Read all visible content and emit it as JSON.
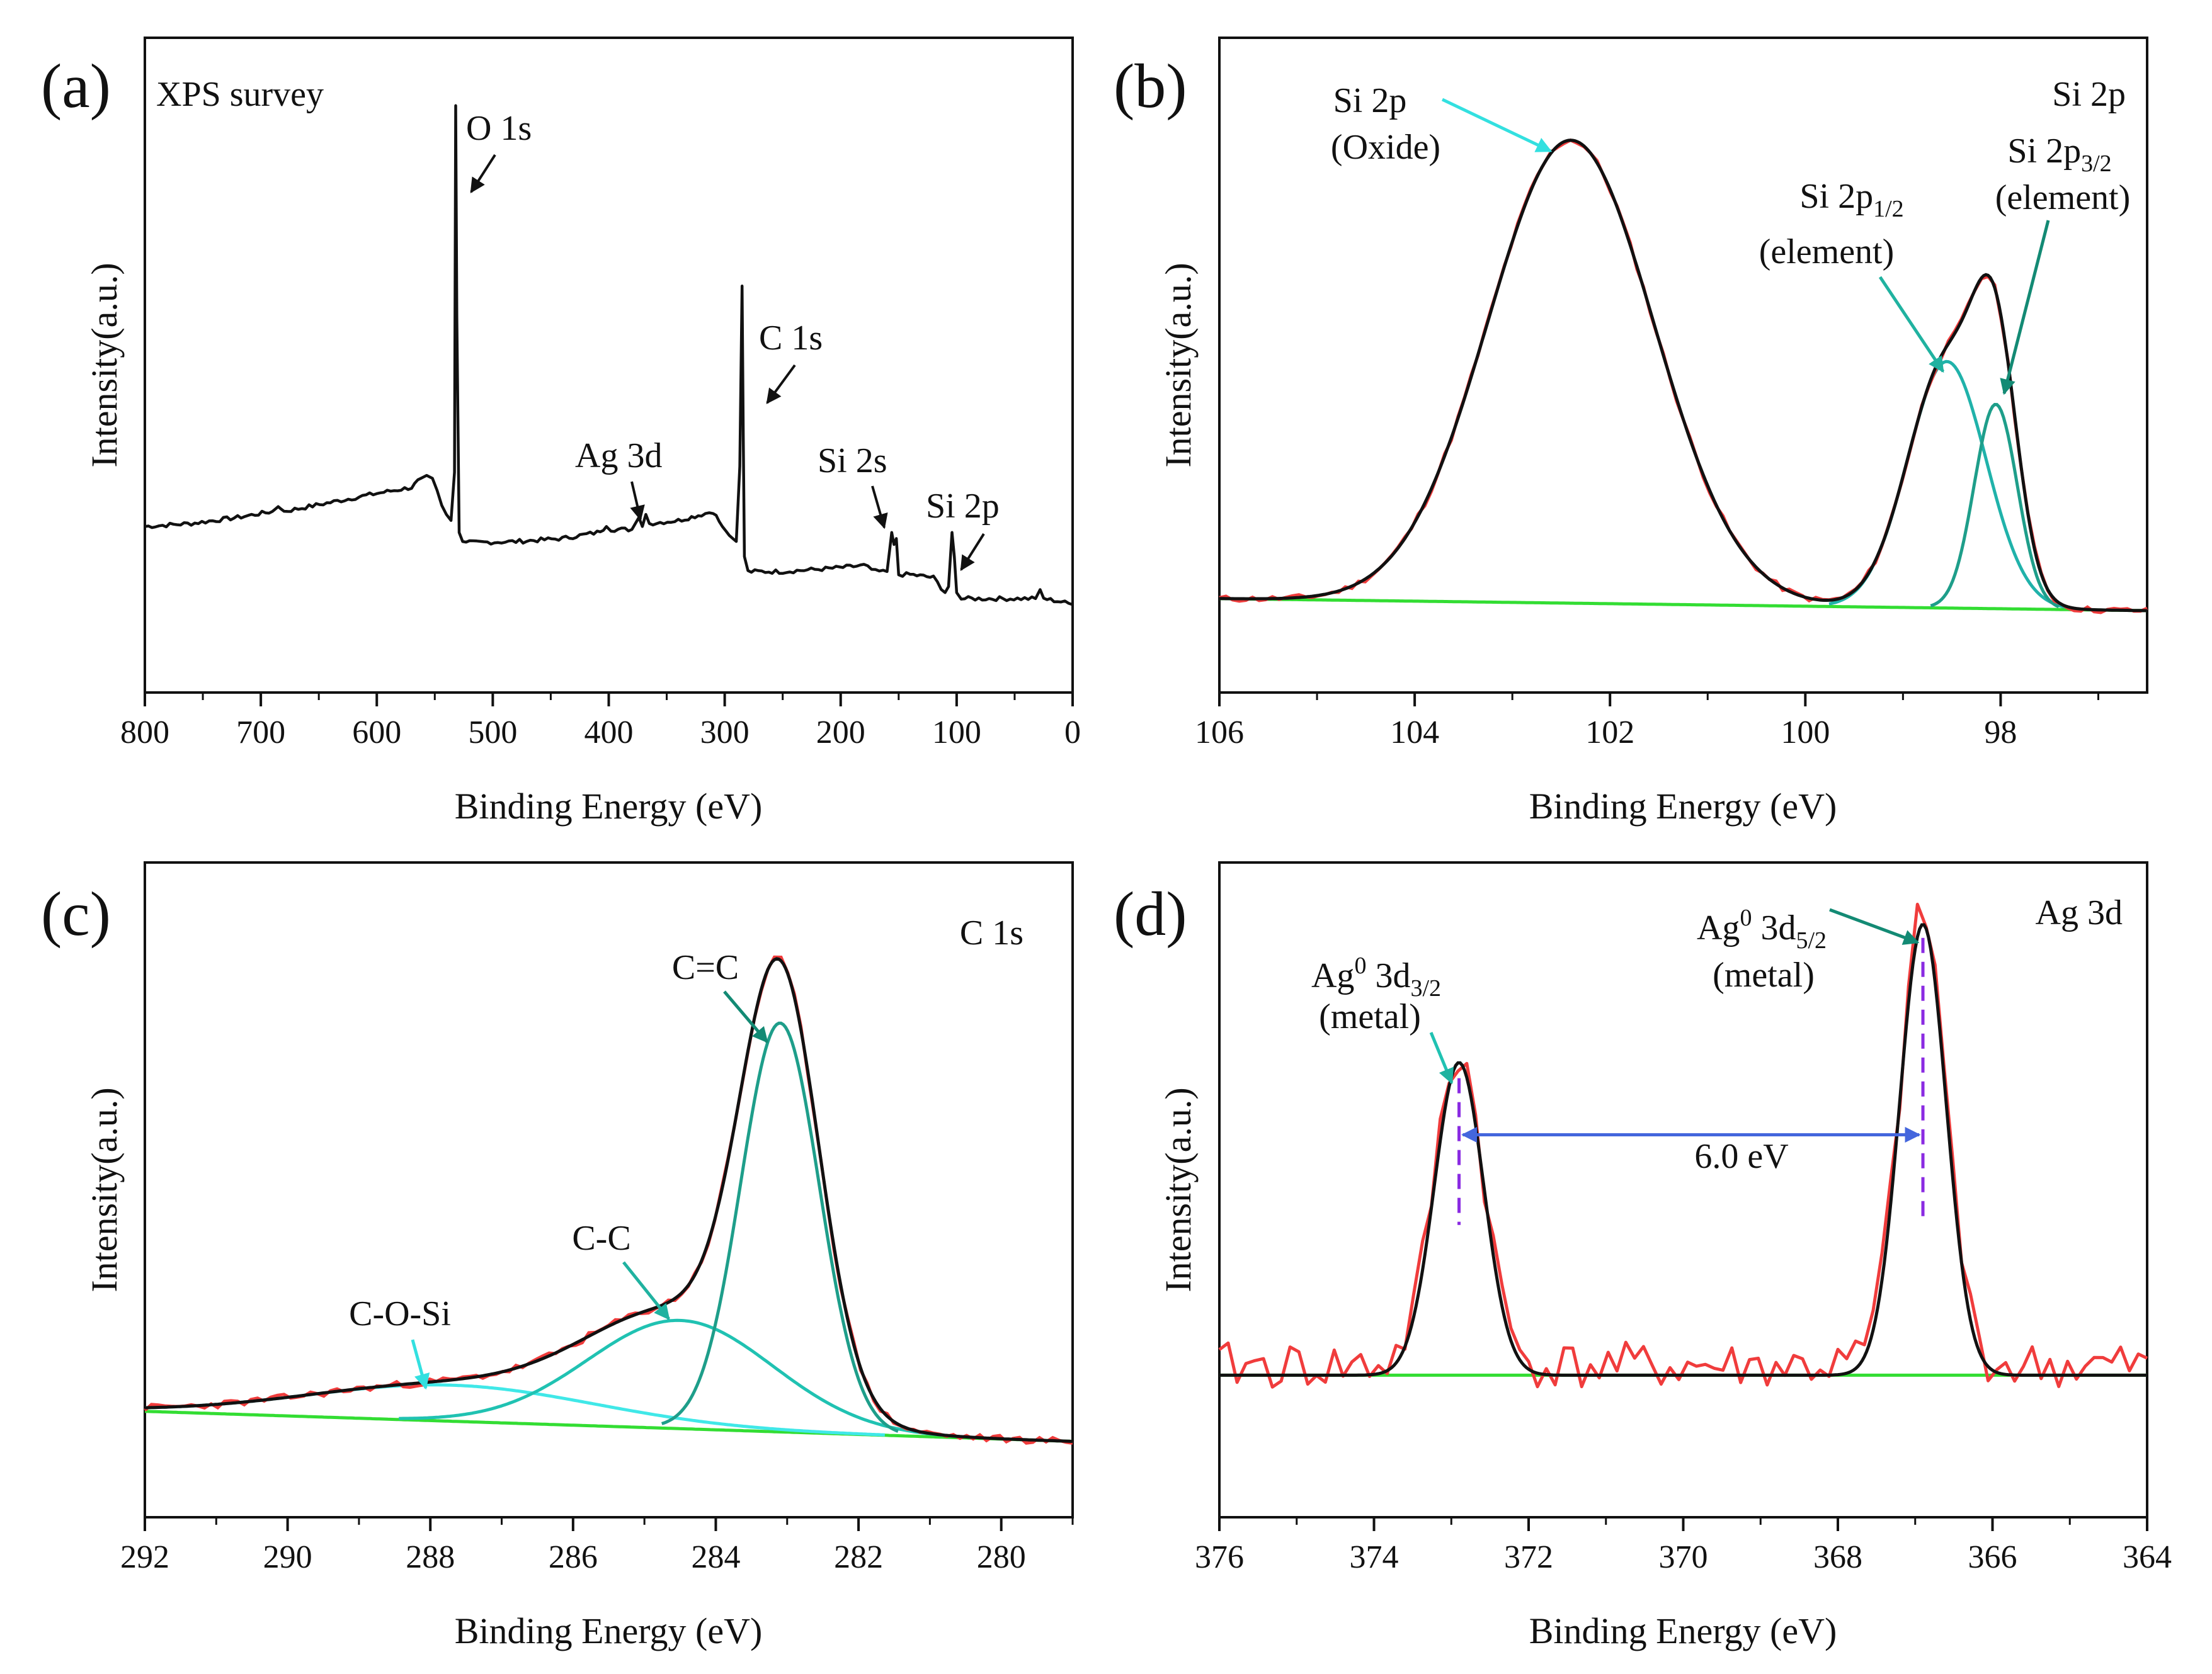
{
  "chart_data": [
    {
      "panel": "(a)",
      "type": "line",
      "title": "XPS survey",
      "xlabel": "Binding Energy (eV)",
      "ylabel": "Intensity(a.u.)",
      "xlim": [
        800,
        0
      ],
      "ylim": [
        0,
        100
      ],
      "xticks": [
        "800",
        "700",
        "600",
        "500",
        "400",
        "300",
        "200",
        "100",
        "0"
      ],
      "x_direction": "reversed",
      "series": [
        {
          "name": "survey",
          "color": "#111111",
          "points": [
            [
              800,
              25
            ],
            [
              760,
              25.5
            ],
            [
              720,
              26.5
            ],
            [
              690,
              27.5
            ],
            [
              685,
              28.3
            ],
            [
              680,
              27.5
            ],
            [
              640,
              29
            ],
            [
              600,
              30.5
            ],
            [
              570,
              31.5
            ],
            [
              562,
              33
            ],
            [
              557,
              33.5
            ],
            [
              552,
              33
            ],
            [
              548,
              31
            ],
            [
              544,
              28.5
            ],
            [
              540,
              27
            ],
            [
              536,
              26
            ],
            [
              533,
              34
            ],
            [
              532,
              95
            ],
            [
              531,
              60
            ],
            [
              529,
              24
            ],
            [
              526,
              22.5
            ],
            [
              520,
              22.3
            ],
            [
              480,
              22.5
            ],
            [
              440,
              23
            ],
            [
              410,
              24
            ],
            [
              402,
              25
            ],
            [
              398,
              24.5
            ],
            [
              380,
              24.5
            ],
            [
              374,
              26.5
            ],
            [
              371,
              25
            ],
            [
              368,
              27
            ],
            [
              365,
              25.5
            ],
            [
              340,
              26
            ],
            [
              320,
              27
            ],
            [
              310,
              27.5
            ],
            [
              302,
              25
            ],
            [
              296,
              23.5
            ],
            [
              290,
              22.5
            ],
            [
              287,
              35
            ],
            [
              285,
              65
            ],
            [
              284,
              40
            ],
            [
              283,
              20
            ],
            [
              280,
              17.5
            ],
            [
              250,
              17.5
            ],
            [
              210,
              18
            ],
            [
              180,
              18.5
            ],
            [
              170,
              17.5
            ],
            [
              160,
              17.5
            ],
            [
              156,
              24
            ],
            [
              154,
              22
            ],
            [
              152,
              23
            ],
            [
              150,
              17
            ],
            [
              140,
              17
            ],
            [
              120,
              16.5
            ],
            [
              110,
              14
            ],
            [
              107,
              15
            ],
            [
              104,
              24
            ],
            [
              102,
              20
            ],
            [
              100,
              14
            ],
            [
              96,
              13
            ],
            [
              60,
              13
            ],
            [
              32,
              13
            ],
            [
              28,
              14.5
            ],
            [
              25,
              13
            ],
            [
              10,
              12.5
            ],
            [
              0,
              12
            ]
          ]
        }
      ],
      "annotations": [
        {
          "text": "O 1s",
          "x": 532
        },
        {
          "text": "C 1s",
          "x": 285
        },
        {
          "text": "Ag 3d",
          "x": 368
        },
        {
          "text": "Si 2s",
          "x": 154
        },
        {
          "text": "Si 2p",
          "x": 102
        }
      ]
    },
    {
      "panel": "(b)",
      "type": "line",
      "title": "Si 2p",
      "xlabel": "Binding Energy (eV)",
      "ylabel": "Intensity(a.u.)",
      "xlim": [
        106,
        96.5
      ],
      "ylim": [
        0,
        100
      ],
      "xticks": [
        "106",
        "104",
        "102",
        "100",
        "98"
      ],
      "x_direction": "reversed",
      "background": {
        "from": 13,
        "to": 11
      },
      "components": [
        {
          "name": "Si 2p (Oxide)",
          "center": 102.4,
          "height": 77,
          "sigma": 0.85,
          "color": "#111111"
        },
        {
          "name": "Si 2p1/2 (element)",
          "center": 98.55,
          "height": 41,
          "sigma": 0.4,
          "color": "#20b2aa"
        },
        {
          "name": "Si 2p3/2 (element)",
          "center": 98.05,
          "height": 34,
          "sigma": 0.22,
          "color": "#1e9e8a"
        }
      ],
      "series": [
        {
          "name": "raw",
          "color": "#f03c3c",
          "noise": 0.5
        },
        {
          "name": "fit envelope",
          "color": "#111111"
        },
        {
          "name": "background",
          "color": "#33dd33"
        }
      ],
      "annotations": [
        {
          "lines": [
            "Si 2p",
            "(Oxide)"
          ]
        },
        {
          "lines": [
            "Si 2p1/2",
            "(element)"
          ]
        },
        {
          "lines": [
            "Si 2p3/2",
            "(element)"
          ]
        }
      ]
    },
    {
      "panel": "(c)",
      "type": "line",
      "title": "C 1s",
      "xlabel": "Binding Energy (eV)",
      "ylabel": "Intensity(a.u.)",
      "xlim": [
        292,
        279
      ],
      "ylim": [
        0,
        100
      ],
      "xticks": [
        "292",
        "290",
        "288",
        "286",
        "284",
        "282",
        "280"
      ],
      "x_direction": "reversed",
      "background": {
        "from": 15,
        "to": 10
      },
      "components": [
        {
          "name": "C=C",
          "center": 283.1,
          "height": 68,
          "sigma": 0.55,
          "color": "#1e9e8a"
        },
        {
          "name": "C-C",
          "center": 284.5,
          "height": 18,
          "sigma": 1.3,
          "color": "#20c2b2"
        },
        {
          "name": "C-O-Si",
          "center": 287.7,
          "height": 6,
          "sigma": 2.0,
          "color": "#40e8e8"
        }
      ],
      "series": [
        {
          "name": "raw",
          "color": "#f03c3c",
          "noise": 0.6
        },
        {
          "name": "fit envelope",
          "color": "#111111"
        },
        {
          "name": "background",
          "color": "#33dd33"
        }
      ],
      "annotations": [
        {
          "text": "C=C"
        },
        {
          "text": "C-C"
        },
        {
          "text": "C-O-Si"
        }
      ]
    },
    {
      "panel": "(d)",
      "type": "line",
      "title": "Ag 3d",
      "xlabel": "Binding Energy (eV)",
      "ylabel": "Intensity(a.u.)",
      "xlim": [
        376,
        364
      ],
      "ylim": [
        0,
        100
      ],
      "xticks": [
        "376",
        "374",
        "372",
        "370",
        "368",
        "366",
        "364"
      ],
      "x_direction": "reversed",
      "background": {
        "from": 21,
        "to": 21
      },
      "components": [
        {
          "name": "Ag0 3d3/2 (metal)",
          "center": 372.9,
          "height": 52,
          "sigma": 0.32,
          "color": "#111111"
        },
        {
          "name": "Ag0 3d5/2 (metal)",
          "center": 366.9,
          "height": 75,
          "sigma": 0.3,
          "color": "#111111"
        }
      ],
      "series": [
        {
          "name": "raw",
          "color": "#f03c3c",
          "noise": 4
        },
        {
          "name": "fit envelope",
          "color": "#111111"
        },
        {
          "name": "background",
          "color": "#33dd33"
        }
      ],
      "splitting": {
        "text": "6.0 eV",
        "from": 372.9,
        "to": 366.9,
        "color": "#4466dd",
        "marker_color": "#8a2be2"
      },
      "annotations": [
        {
          "lines": [
            "Ag0 3d3/2",
            "(metal)"
          ]
        },
        {
          "lines": [
            "Ag0 3d5/2",
            "(metal)"
          ]
        }
      ]
    }
  ]
}
